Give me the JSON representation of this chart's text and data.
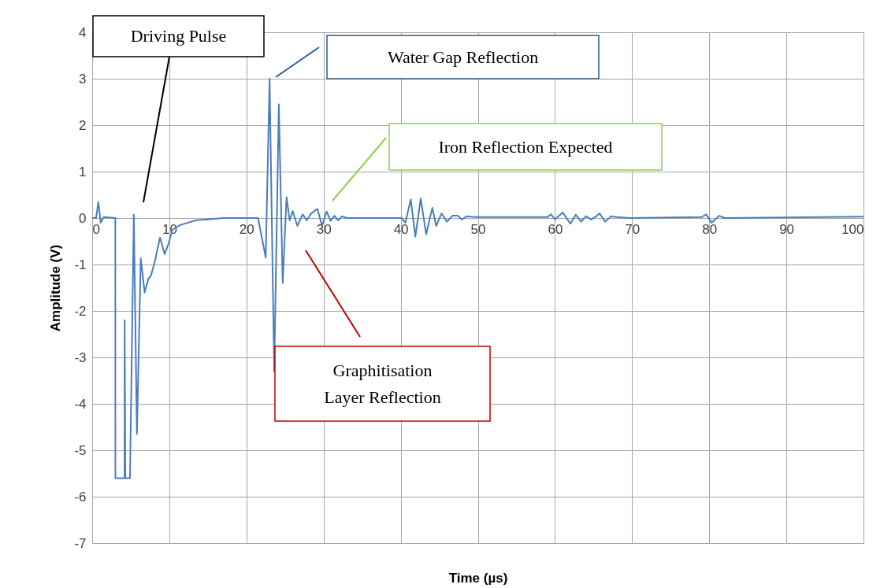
{
  "chart_data": {
    "type": "line",
    "xlabel": "Time (µs)",
    "ylabel": "Amplitude (V)",
    "xlim": [
      0,
      100
    ],
    "ylim": [
      -7,
      4
    ],
    "xticks": [
      0,
      10,
      20,
      30,
      40,
      50,
      60,
      70,
      80,
      90,
      100
    ],
    "yticks": [
      -7,
      -6,
      -5,
      -4,
      -3,
      -2,
      -1,
      0,
      1,
      2,
      3,
      4
    ],
    "grid": true,
    "marker": "none",
    "line_style": "solid",
    "series": [
      {
        "color": "#4a7ebb",
        "x": [
          0,
          0.5,
          0.8,
          1.1,
          1.5,
          3.0,
          3.01,
          4.2,
          4.21,
          4.3,
          4.31,
          4.9,
          5.4,
          5.8,
          6.3,
          6.8,
          7.3,
          7.6,
          8.1,
          8.8,
          9.4,
          9.9,
          10.4,
          11.4,
          13.4,
          17,
          21.5,
          22.5,
          23.0,
          23.6,
          24.2,
          24.7,
          25.2,
          25.6,
          26.0,
          26.6,
          27.3,
          27.8,
          28.4,
          29.2,
          29.8,
          30.4,
          30.9,
          31.4,
          31.9,
          32.4,
          33,
          40.1,
          40.6,
          41.3,
          41.9,
          42.6,
          43.3,
          44.1,
          44.6,
          45.3,
          46.0,
          46.7,
          47.4,
          47.9,
          48.6,
          49.1,
          50,
          59.0,
          59.5,
          60.0,
          61.0,
          62.0,
          62.7,
          63.4,
          64.0,
          64.7,
          65.3,
          65.8,
          66.5,
          67.3,
          68.0,
          69.7,
          79.0,
          79.6,
          80.3,
          81.3,
          82.0,
          100
        ],
        "values": [
          0,
          0,
          0.34,
          -0.1,
          0.02,
          0,
          -5.6,
          -5.6,
          -2.2,
          -5.6,
          -5.6,
          -5.6,
          0.07,
          -4.65,
          -0.87,
          -1.6,
          -1.3,
          -1.25,
          -0.95,
          -0.42,
          -0.78,
          -0.55,
          -0.25,
          -0.15,
          -0.05,
          0,
          0,
          -0.85,
          3.0,
          -3.3,
          2.45,
          -1.4,
          0.45,
          -0.05,
          0.15,
          -0.17,
          0.08,
          -0.05,
          0.1,
          0.2,
          -0.17,
          0.14,
          -0.06,
          0.05,
          -0.05,
          0.04,
          0,
          0,
          -0.1,
          0.4,
          -0.4,
          0.42,
          -0.35,
          0.22,
          -0.17,
          0.1,
          -0.08,
          0.05,
          0.05,
          -0.03,
          0.04,
          0.03,
          0.02,
          0.02,
          0.08,
          -0.03,
          0.12,
          -0.12,
          0.07,
          -0.08,
          0.04,
          -0.03,
          0.03,
          0.1,
          -0.08,
          0.04,
          0.02,
          0,
          0.02,
          0.08,
          -0.1,
          0.05,
          0,
          0.03
        ]
      }
    ],
    "annotations": [
      "Driving Pulse",
      "Water Gap Reflection",
      "Iron Reflection Expected",
      "Graphitisation\nLayer Reflection"
    ]
  }
}
